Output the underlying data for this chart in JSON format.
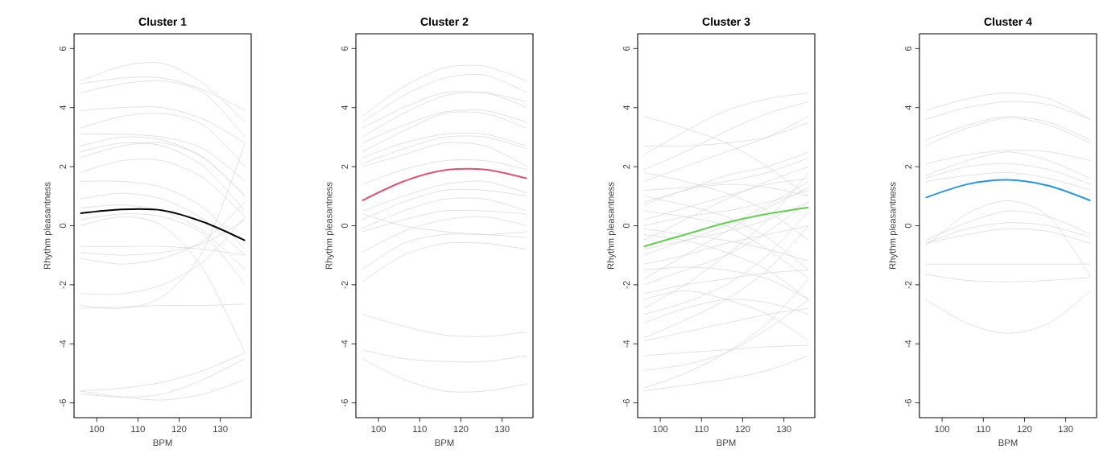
{
  "chart_data": [
    {
      "type": "line",
      "title": "Cluster 1",
      "xlabel": "BPM",
      "ylabel": "Rhythm pleasantness",
      "x": [
        96,
        106,
        116,
        126,
        136
      ],
      "xlim": [
        94.5,
        137.5
      ],
      "ylim": [
        -6.5,
        6.5
      ],
      "xticks": [
        100,
        110,
        120,
        130
      ],
      "yticks": [
        -6,
        -4,
        -2,
        0,
        2,
        4,
        6
      ],
      "series": [
        {
          "color": "#d3d3d3",
          "values": [
            4.9,
            5.4,
            5.5,
            4.8,
            3.5
          ]
        },
        {
          "color": "#d3d3d3",
          "values": [
            4.8,
            5.0,
            5.0,
            4.6,
            3.9
          ]
        },
        {
          "color": "#d3d3d3",
          "values": [
            4.5,
            4.8,
            4.9,
            4.5,
            3.0
          ]
        },
        {
          "color": "#d3d3d3",
          "values": [
            3.9,
            4.0,
            4.0,
            3.6,
            2.8
          ]
        },
        {
          "color": "#d3d3d3",
          "values": [
            3.3,
            3.7,
            3.8,
            3.4,
            2.0
          ]
        },
        {
          "color": "#d3d3d3",
          "values": [
            3.1,
            3.1,
            3.0,
            2.6,
            1.5
          ]
        },
        {
          "color": "#d3d3d3",
          "values": [
            2.7,
            3.0,
            2.9,
            2.3,
            1.0
          ]
        },
        {
          "color": "#d3d3d3",
          "values": [
            2.5,
            2.8,
            2.7,
            2.0,
            0.5
          ]
        },
        {
          "color": "#d3d3d3",
          "values": [
            2.3,
            2.7,
            2.8,
            2.3,
            1.0
          ]
        },
        {
          "color": "#d3d3d3",
          "values": [
            1.8,
            2.2,
            2.2,
            1.6,
            0.3
          ]
        },
        {
          "color": "#d3d3d3",
          "values": [
            1.5,
            1.5,
            1.3,
            0.6,
            -0.8
          ]
        },
        {
          "color": "#d3d3d3",
          "values": [
            0.9,
            1.1,
            0.9,
            0.2,
            -1.0
          ]
        },
        {
          "color": "#d3d3d3",
          "values": [
            0.6,
            0.7,
            0.5,
            -0.2,
            -1.5
          ]
        },
        {
          "color": "#d3d3d3",
          "values": [
            0.2,
            0.4,
            0.3,
            -0.3,
            -2.0
          ]
        },
        {
          "color": "#d3d3d3",
          "values": [
            0.0,
            0.3,
            0.0,
            -1.5,
            -4.3
          ]
        },
        {
          "color": "#d3d3d3",
          "values": [
            -0.7,
            -0.7,
            -0.7,
            -0.8,
            -1.0
          ]
        },
        {
          "color": "#d3d3d3",
          "values": [
            -0.9,
            -1.0,
            -0.9,
            -0.6,
            0.2
          ]
        },
        {
          "color": "#d3d3d3",
          "values": [
            -1.1,
            -1.3,
            -1.1,
            -0.5,
            0.8
          ]
        },
        {
          "color": "#d3d3d3",
          "values": [
            -2.3,
            -2.3,
            -2.0,
            -1.2,
            0.3
          ]
        },
        {
          "color": "#d3d3d3",
          "values": [
            -2.7,
            -2.8,
            -2.4,
            -0.8,
            2.8
          ]
        },
        {
          "color": "#d3d3d3",
          "values": [
            -2.8,
            -2.75,
            -2.7,
            -2.7,
            -2.65
          ]
        },
        {
          "color": "#d3d3d3",
          "values": [
            -5.6,
            -5.5,
            -5.3,
            -4.9,
            -4.3
          ]
        },
        {
          "color": "#d3d3d3",
          "values": [
            -5.7,
            -5.8,
            -5.7,
            -5.2,
            -4.5
          ]
        },
        {
          "color": "#d3d3d3",
          "values": [
            -5.6,
            -5.8,
            -5.9,
            -5.7,
            -5.2
          ]
        },
        {
          "color": "#000000",
          "values": [
            0.42,
            0.55,
            0.52,
            0.12,
            -0.5
          ]
        }
      ]
    },
    {
      "type": "line",
      "title": "Cluster 2",
      "xlabel": "BPM",
      "ylabel": "Rhythm pleasantness",
      "x": [
        96,
        106,
        116,
        126,
        136
      ],
      "xlim": [
        94.5,
        137.5
      ],
      "ylim": [
        -6.5,
        6.5
      ],
      "xticks": [
        100,
        110,
        120,
        130
      ],
      "yticks": [
        -6,
        -4,
        -2,
        0,
        2,
        4,
        6
      ],
      "series": [
        {
          "color": "#d3d3d3",
          "values": [
            3.7,
            4.7,
            5.35,
            5.4,
            4.9
          ]
        },
        {
          "color": "#d3d3d3",
          "values": [
            3.5,
            4.4,
            5.0,
            5.1,
            4.5
          ]
        },
        {
          "color": "#d3d3d3",
          "values": [
            3.3,
            4.0,
            4.5,
            4.5,
            4.2
          ]
        },
        {
          "color": "#d3d3d3",
          "values": [
            3.0,
            3.8,
            4.4,
            4.5,
            4.0
          ]
        },
        {
          "color": "#d3d3d3",
          "values": [
            2.8,
            3.4,
            3.85,
            3.9,
            3.5
          ]
        },
        {
          "color": "#d3d3d3",
          "values": [
            2.5,
            3.2,
            3.8,
            3.8,
            3.3
          ]
        },
        {
          "color": "#d3d3d3",
          "values": [
            2.3,
            2.8,
            3.1,
            3.1,
            2.7
          ]
        },
        {
          "color": "#d3d3d3",
          "values": [
            2.1,
            2.6,
            3.0,
            3.0,
            2.6
          ]
        },
        {
          "color": "#d3d3d3",
          "values": [
            2.0,
            2.4,
            2.8,
            2.7,
            2.0
          ]
        },
        {
          "color": "#d3d3d3",
          "values": [
            1.4,
            1.9,
            2.2,
            2.2,
            1.9
          ]
        },
        {
          "color": "#d3d3d3",
          "values": [
            0.5,
            1.0,
            1.4,
            1.5,
            1.1
          ]
        },
        {
          "color": "#d3d3d3",
          "values": [
            0.2,
            0.8,
            1.2,
            1.2,
            1.0
          ]
        },
        {
          "color": "#d3d3d3",
          "values": [
            -0.1,
            0.5,
            0.9,
            0.9,
            0.5
          ]
        },
        {
          "color": "#d3d3d3",
          "values": [
            -0.2,
            0.2,
            0.5,
            0.5,
            0.4
          ]
        },
        {
          "color": "#d3d3d3",
          "values": [
            0.4,
            0.0,
            -0.2,
            -0.3,
            -0.2
          ]
        },
        {
          "color": "#d3d3d3",
          "values": [
            -0.9,
            -0.2,
            0.2,
            0.3,
            0.0
          ]
        },
        {
          "color": "#d3d3d3",
          "values": [
            -1.5,
            -0.6,
            -0.3,
            -0.3,
            -0.4
          ]
        },
        {
          "color": "#d3d3d3",
          "values": [
            -1.9,
            -1.0,
            -0.6,
            -0.6,
            -0.8
          ]
        },
        {
          "color": "#d3d3d3",
          "values": [
            -3.0,
            -3.4,
            -3.7,
            -3.75,
            -3.6
          ]
        },
        {
          "color": "#d3d3d3",
          "values": [
            -4.2,
            -4.5,
            -4.6,
            -4.6,
            -4.4
          ]
        },
        {
          "color": "#d3d3d3",
          "values": [
            -4.5,
            -5.2,
            -5.6,
            -5.6,
            -5.35
          ]
        },
        {
          "color": "#df536b",
          "values": [
            0.85,
            1.5,
            1.88,
            1.9,
            1.6
          ]
        }
      ]
    },
    {
      "type": "line",
      "title": "Cluster 3",
      "xlabel": "BPM",
      "ylabel": "Rhythm pleasantness",
      "x": [
        96,
        106,
        116,
        126,
        136
      ],
      "xlim": [
        94.5,
        137.5
      ],
      "ylim": [
        -6.5,
        6.5
      ],
      "xticks": [
        100,
        110,
        120,
        130
      ],
      "yticks": [
        -6,
        -4,
        -2,
        0,
        2,
        4,
        6
      ],
      "series": [
        {
          "color": "#d3d3d3",
          "values": [
            3.7,
            3.3,
            2.8,
            2.0,
            1.0
          ]
        },
        {
          "color": "#d3d3d3",
          "values": [
            2.4,
            3.2,
            3.9,
            4.3,
            4.5
          ]
        },
        {
          "color": "#d3d3d3",
          "values": [
            2.7,
            2.7,
            2.8,
            3.0,
            3.5
          ]
        },
        {
          "color": "#d3d3d3",
          "values": [
            1.9,
            2.5,
            3.2,
            3.8,
            4.2
          ]
        },
        {
          "color": "#d3d3d3",
          "values": [
            1.8,
            1.5,
            1.1,
            0.5,
            -0.5
          ]
        },
        {
          "color": "#d3d3d3",
          "values": [
            1.5,
            2.0,
            2.5,
            3.0,
            3.7
          ]
        },
        {
          "color": "#d3d3d3",
          "values": [
            1.2,
            1.3,
            1.5,
            1.8,
            2.3
          ]
        },
        {
          "color": "#d3d3d3",
          "values": [
            1.0,
            0.7,
            0.3,
            -0.4,
            -1.5
          ]
        },
        {
          "color": "#d3d3d3",
          "values": [
            0.8,
            1.2,
            1.7,
            2.0,
            2.5
          ]
        },
        {
          "color": "#d3d3d3",
          "values": [
            0.5,
            0.3,
            0.0,
            -0.8,
            -1.8
          ]
        },
        {
          "color": "#d3d3d3",
          "values": [
            0.2,
            0.6,
            1.0,
            1.4,
            1.6
          ]
        },
        {
          "color": "#d3d3d3",
          "values": [
            0.0,
            0.3,
            0.5,
            0.8,
            1.2
          ]
        },
        {
          "color": "#d3d3d3",
          "values": [
            -0.3,
            -0.5,
            -0.9,
            -1.5,
            -2.5
          ]
        },
        {
          "color": "#d3d3d3",
          "values": [
            -0.5,
            0.2,
            0.9,
            1.5,
            2.0
          ]
        },
        {
          "color": "#d3d3d3",
          "values": [
            -0.8,
            -0.5,
            -0.2,
            0.2,
            0.8
          ]
        },
        {
          "color": "#d3d3d3",
          "values": [
            -1.0,
            -0.5,
            0.0,
            0.7,
            1.5
          ]
        },
        {
          "color": "#d3d3d3",
          "values": [
            -1.3,
            -1.0,
            -0.6,
            -0.3,
            0.0
          ]
        },
        {
          "color": "#d3d3d3",
          "values": [
            -1.5,
            -1.4,
            -1.5,
            -1.8,
            -2.5
          ]
        },
        {
          "color": "#d3d3d3",
          "values": [
            -1.8,
            -1.0,
            -0.2,
            0.6,
            1.3
          ]
        },
        {
          "color": "#d3d3d3",
          "values": [
            -2.0,
            -1.5,
            -1.0,
            -0.2,
            0.8
          ]
        },
        {
          "color": "#d3d3d3",
          "values": [
            -2.3,
            -2.0,
            -1.8,
            -1.6,
            -1.5
          ]
        },
        {
          "color": "#d3d3d3",
          "values": [
            -2.5,
            -2.2,
            -2.5,
            -3.0,
            -3.9
          ]
        },
        {
          "color": "#d3d3d3",
          "values": [
            -2.8,
            -2.0,
            -1.0,
            0.2,
            1.8
          ]
        },
        {
          "color": "#d3d3d3",
          "values": [
            -3.0,
            -2.6,
            -2.0,
            -1.0,
            0.5
          ]
        },
        {
          "color": "#d3d3d3",
          "values": [
            -3.3,
            -2.8,
            -2.5,
            -2.6,
            -3.0
          ]
        },
        {
          "color": "#d3d3d3",
          "values": [
            -3.8,
            -3.2,
            -2.5,
            -1.5,
            0.0
          ]
        },
        {
          "color": "#d3d3d3",
          "values": [
            -3.9,
            -3.6,
            -3.3,
            -3.0,
            -2.8
          ]
        },
        {
          "color": "#d3d3d3",
          "values": [
            -4.4,
            -4.3,
            -4.2,
            -4.1,
            -4.05
          ]
        },
        {
          "color": "#d3d3d3",
          "values": [
            -4.9,
            -4.7,
            -4.3,
            -3.5,
            -2.5
          ]
        },
        {
          "color": "#d3d3d3",
          "values": [
            -5.5,
            -5.0,
            -4.3,
            -3.3,
            -1.8
          ]
        },
        {
          "color": "#d3d3d3",
          "values": [
            -5.6,
            -5.4,
            -5.2,
            -4.9,
            -4.4
          ]
        },
        {
          "color": "#d3d3d3",
          "values": [
            0.7,
            1.2,
            1.4,
            1.3,
            1.0
          ]
        },
        {
          "color": "#d3d3d3",
          "values": [
            -0.1,
            -0.3,
            -0.5,
            -0.8,
            -1.2
          ]
        },
        {
          "color": "#61d04f",
          "values": [
            -0.7,
            -0.3,
            0.1,
            0.4,
            0.62
          ]
        }
      ]
    },
    {
      "type": "line",
      "title": "Cluster 4",
      "xlabel": "BPM",
      "ylabel": "Rhythm pleasantness",
      "x": [
        96,
        106,
        116,
        126,
        136
      ],
      "xlim": [
        94.5,
        137.5
      ],
      "ylim": [
        -6.5,
        6.5
      ],
      "xticks": [
        100,
        110,
        120,
        130
      ],
      "yticks": [
        -6,
        -4,
        -2,
        0,
        2,
        4,
        6
      ],
      "series": [
        {
          "color": "#d3d3d3",
          "values": [
            3.9,
            4.3,
            4.5,
            4.3,
            3.6
          ]
        },
        {
          "color": "#d3d3d3",
          "values": [
            3.6,
            4.0,
            4.2,
            4.1,
            3.6
          ]
        },
        {
          "color": "#d3d3d3",
          "values": [
            2.9,
            3.4,
            3.7,
            3.5,
            2.9
          ]
        },
        {
          "color": "#d3d3d3",
          "values": [
            2.7,
            3.3,
            3.65,
            3.4,
            2.8
          ]
        },
        {
          "color": "#d3d3d3",
          "values": [
            2.1,
            2.4,
            2.55,
            2.5,
            2.2
          ]
        },
        {
          "color": "#d3d3d3",
          "values": [
            1.7,
            2.2,
            2.5,
            2.2,
            1.6
          ]
        },
        {
          "color": "#d3d3d3",
          "values": [
            1.6,
            2.0,
            2.1,
            1.9,
            1.4
          ]
        },
        {
          "color": "#d3d3d3",
          "values": [
            1.5,
            1.7,
            1.8,
            1.6,
            1.2
          ]
        },
        {
          "color": "#d3d3d3",
          "values": [
            -0.7,
            0.4,
            0.85,
            0.3,
            -1.7
          ]
        },
        {
          "color": "#d3d3d3",
          "values": [
            -0.5,
            0.1,
            0.5,
            0.3,
            -0.3
          ]
        },
        {
          "color": "#d3d3d3",
          "values": [
            -0.6,
            -0.1,
            0.1,
            0.0,
            -0.4
          ]
        },
        {
          "color": "#d3d3d3",
          "values": [
            -0.6,
            -0.3,
            -0.1,
            -0.2,
            -0.6
          ]
        },
        {
          "color": "#d3d3d3",
          "values": [
            -1.3,
            -1.3,
            -1.3,
            -1.3,
            -1.3
          ]
        },
        {
          "color": "#d3d3d3",
          "values": [
            -1.65,
            -1.85,
            -1.9,
            -1.85,
            -1.75
          ]
        },
        {
          "color": "#d3d3d3",
          "values": [
            -2.5,
            -3.3,
            -3.65,
            -3.3,
            -2.2
          ]
        },
        {
          "color": "#2297e6",
          "values": [
            0.95,
            1.4,
            1.55,
            1.35,
            0.85
          ]
        }
      ]
    }
  ]
}
